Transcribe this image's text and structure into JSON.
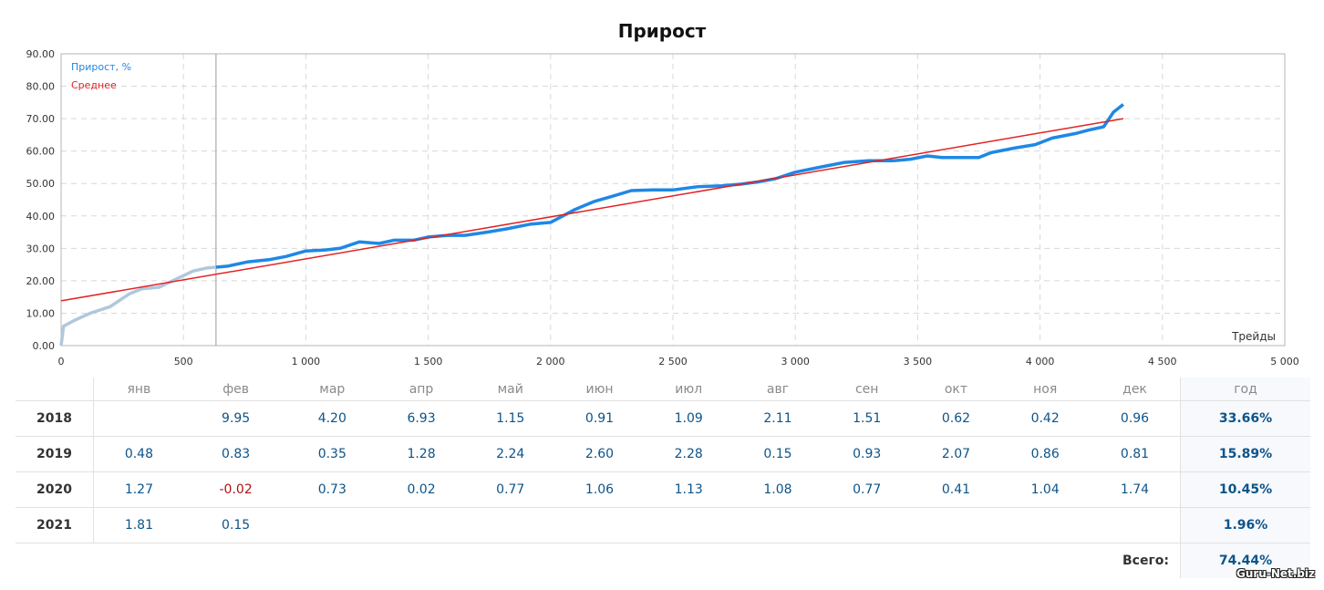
{
  "chart_data": {
    "type": "line",
    "title": "Прирост",
    "xlabel": "Трейды",
    "ylabel": "",
    "xlim": [
      0,
      5000
    ],
    "ylim": [
      0,
      90
    ],
    "x_ticks": [
      "0",
      "500",
      "1 000",
      "1 500",
      "2 000",
      "2 500",
      "3 000",
      "3 500",
      "4 000",
      "4 500",
      "5 000"
    ],
    "y_ticks": [
      "0.00",
      "10.00",
      "20.00",
      "30.00",
      "40.00",
      "50.00",
      "60.00",
      "70.00",
      "80.00",
      "90.00"
    ],
    "grid": true,
    "legend_position": "top-left",
    "marker_x": 633,
    "series": [
      {
        "name": "Прирост, %",
        "color": "#1e88e5",
        "color_before_marker": "#b0c8dc",
        "x": [
          0,
          10,
          60,
          120,
          200,
          280,
          330,
          400,
          470,
          540,
          600,
          633,
          680,
          760,
          850,
          920,
          1000,
          1080,
          1140,
          1220,
          1300,
          1360,
          1440,
          1500,
          1580,
          1650,
          1740,
          1820,
          1920,
          2000,
          2050,
          2100,
          2180,
          2250,
          2330,
          2420,
          2500,
          2600,
          2700,
          2780,
          2850,
          2920,
          3000,
          3100,
          3200,
          3300,
          3400,
          3470,
          3540,
          3600,
          3750,
          3800,
          3900,
          3980,
          4050,
          4150,
          4200,
          4260,
          4300,
          4340
        ],
        "y": [
          0,
          6,
          8,
          10,
          12,
          16,
          17.5,
          18,
          20.5,
          23,
          24,
          24.2,
          24.5,
          25.8,
          26.5,
          27.5,
          29.2,
          29.5,
          30,
          32,
          31.5,
          32.5,
          32.5,
          33.5,
          34,
          34,
          35,
          36,
          37.5,
          38,
          40,
          42,
          44.5,
          46,
          47.8,
          48,
          48,
          49,
          49.3,
          49.8,
          50.5,
          51.5,
          53.5,
          55,
          56.5,
          57,
          57,
          57.5,
          58.5,
          58,
          58,
          59.5,
          61,
          62,
          64,
          65.5,
          66.5,
          67.5,
          72,
          74.4
        ]
      },
      {
        "name": "Среднее",
        "color": "#e32222",
        "x": [
          0,
          4340
        ],
        "y": [
          13.8,
          70
        ]
      }
    ]
  },
  "table": {
    "months": [
      "янв",
      "фев",
      "мар",
      "апр",
      "май",
      "июн",
      "июл",
      "авг",
      "сен",
      "окт",
      "ноя",
      "дек"
    ],
    "year_header": "год",
    "rows": [
      {
        "year": "2018",
        "values": [
          "",
          "9.95",
          "4.20",
          "6.93",
          "1.15",
          "0.91",
          "1.09",
          "2.11",
          "1.51",
          "0.62",
          "0.42",
          "0.96"
        ],
        "total": "33.66%"
      },
      {
        "year": "2019",
        "values": [
          "0.48",
          "0.83",
          "0.35",
          "1.28",
          "2.24",
          "2.60",
          "2.28",
          "0.15",
          "0.93",
          "2.07",
          "0.86",
          "0.81"
        ],
        "total": "15.89%"
      },
      {
        "year": "2020",
        "values": [
          "1.27",
          "-0.02",
          "0.73",
          "0.02",
          "0.77",
          "1.06",
          "1.13",
          "1.08",
          "0.77",
          "0.41",
          "1.04",
          "1.74"
        ],
        "total": "10.45%"
      },
      {
        "year": "2021",
        "values": [
          "1.81",
          "0.15",
          "",
          "",
          "",
          "",
          "",
          "",
          "",
          "",
          "",
          ""
        ],
        "total": "1.96%"
      }
    ],
    "sum_label": "Всего:",
    "sum_value": "74.44%"
  },
  "watermark": "Guru-Net.biz"
}
